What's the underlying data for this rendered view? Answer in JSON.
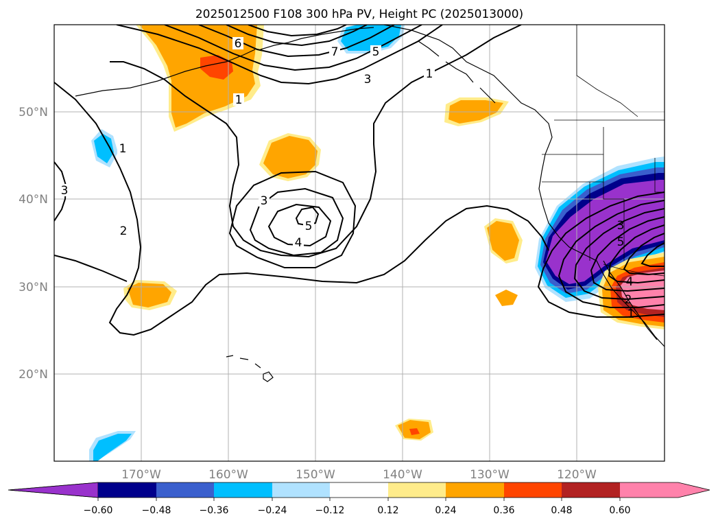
{
  "title": "2025012500 F108 300 hPa PV, Height PC (2025013000)",
  "map": {
    "projection": "plate-carree",
    "lon_range": [
      -180,
      -110
    ],
    "lat_range": [
      10,
      60
    ],
    "lat_labels": [
      "50°N",
      "40°N",
      "30°N",
      "20°N"
    ],
    "lat_values": [
      50,
      40,
      30,
      20
    ],
    "lon_labels": [
      "170°W",
      "160°W",
      "150°W",
      "140°W",
      "130°W",
      "120°W"
    ],
    "lon_values": [
      -170,
      -160,
      -150,
      -140,
      -130,
      -120
    ],
    "grid": true
  },
  "colorbar": {
    "orientation": "horizontal",
    "extend": "both",
    "colors": [
      "#9932cc",
      "#00008b",
      "#3a5fcd",
      "#00bfff",
      "#b0e2ff",
      "#ffffff",
      "#ffec8b",
      "#ffa500",
      "#ff4500",
      "#b22222",
      "#ff82ab"
    ],
    "tick_labels": [
      "−0.60",
      "−0.48",
      "−0.36",
      "−0.24",
      "−0.12",
      "0.12",
      "0.24",
      "0.36",
      "0.48",
      "0.60"
    ]
  },
  "contour_labels": [
    {
      "text": "6"
    },
    {
      "text": "7"
    },
    {
      "text": "5"
    },
    {
      "text": "3"
    },
    {
      "text": "1"
    },
    {
      "text": "1"
    },
    {
      "text": "1"
    },
    {
      "text": "3"
    },
    {
      "text": "2"
    },
    {
      "text": "3"
    },
    {
      "text": "5"
    },
    {
      "text": "4"
    },
    {
      "text": "3"
    },
    {
      "text": "5"
    },
    {
      "text": "4"
    },
    {
      "text": "2"
    },
    {
      "text": "1"
    }
  ]
}
